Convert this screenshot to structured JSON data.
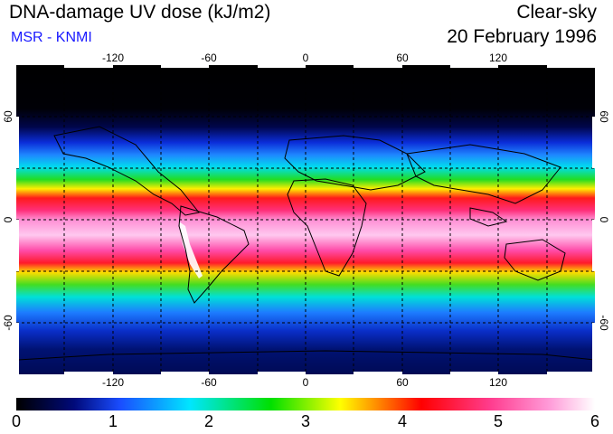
{
  "header": {
    "title": "DNA-damage UV dose (kJ/m2)",
    "source": "MSR - KNMI",
    "condition": "Clear-sky",
    "date": "20 February 1996"
  },
  "map": {
    "projection": "equirectangular",
    "lon_range": [
      -180,
      180
    ],
    "lat_range": [
      -90,
      90
    ],
    "lon_ticks": [
      "-120",
      "-60",
      "0",
      "60",
      "120"
    ],
    "lat_ticks": [
      "60",
      "0",
      "-60"
    ],
    "grid": "dashed 30 degree lines"
  },
  "colorbar": {
    "labels": [
      "0",
      "1",
      "2",
      "3",
      "4",
      "5",
      "6"
    ],
    "range": [
      0,
      6
    ],
    "colors": [
      "#000000",
      "#000a7a",
      "#1a4dff",
      "#00e6ff",
      "#00e000",
      "#ffff00",
      "#ff0000",
      "#ff5fa5",
      "#ffffff"
    ]
  }
}
